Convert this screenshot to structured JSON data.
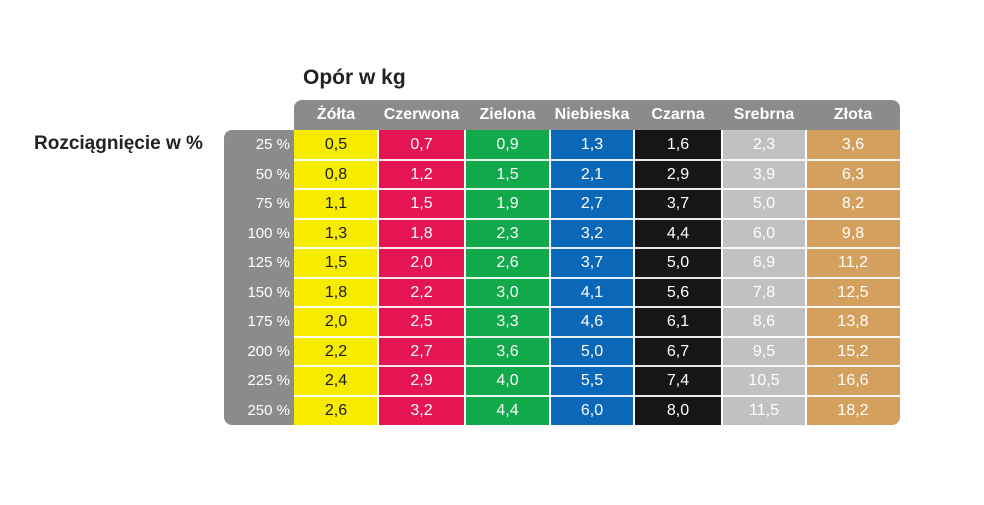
{
  "chart_data": {
    "type": "table",
    "title": "Opór w kg",
    "row_title": "Rozciągnięcie w %",
    "columns": [
      {
        "name": "Żółta",
        "color": "#f7eb00",
        "text_color": "#1a1a1a"
      },
      {
        "name": "Czerwona",
        "color": "#e51453",
        "text_color": "#ffffff"
      },
      {
        "name": "Zielona",
        "color": "#12a94a",
        "text_color": "#ffffff"
      },
      {
        "name": "Niebieska",
        "color": "#0b67b7",
        "text_color": "#ffffff"
      },
      {
        "name": "Czarna",
        "color": "#161616",
        "text_color": "#ffffff"
      },
      {
        "name": "Srebrna",
        "color": "#c1c1c1",
        "text_color": "#ffffff"
      },
      {
        "name": "Złota",
        "color": "#d3a05d",
        "text_color": "#ffffff"
      }
    ],
    "rows": [
      "25 %",
      "50 %",
      "75 %",
      "100 %",
      "125 %",
      "150 %",
      "175 %",
      "200 %",
      "225 %",
      "250 %"
    ],
    "values": [
      [
        "0,5",
        "0,7",
        "0,9",
        "1,3",
        "1,6",
        "2,3",
        "3,6"
      ],
      [
        "0,8",
        "1,2",
        "1,5",
        "2,1",
        "2,9",
        "3,9",
        "6,3"
      ],
      [
        "1,1",
        "1,5",
        "1,9",
        "2,7",
        "3,7",
        "5,0",
        "8,2"
      ],
      [
        "1,3",
        "1,8",
        "2,3",
        "3,2",
        "4,4",
        "6,0",
        "9,8"
      ],
      [
        "1,5",
        "2,0",
        "2,6",
        "3,7",
        "5,0",
        "6,9",
        "11,2"
      ],
      [
        "1,8",
        "2,2",
        "3,0",
        "4,1",
        "5,6",
        "7,8",
        "12,5"
      ],
      [
        "2,0",
        "2,5",
        "3,3",
        "4,6",
        "6,1",
        "8,6",
        "13,8"
      ],
      [
        "2,2",
        "2,7",
        "3,6",
        "5,0",
        "6,7",
        "9,5",
        "15,2"
      ],
      [
        "2,4",
        "2,9",
        "4,0",
        "5,5",
        "7,4",
        "10,5",
        "16,6"
      ],
      [
        "2,6",
        "3,2",
        "4,4",
        "6,0",
        "8,0",
        "11,5",
        "18,2"
      ]
    ],
    "header_bg": "#8b8b8b"
  }
}
